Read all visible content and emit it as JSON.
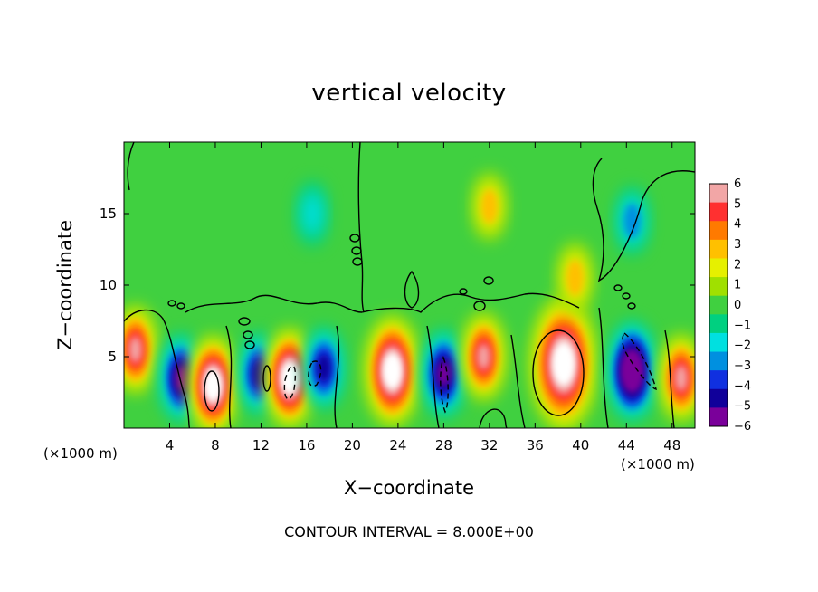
{
  "chart_data": {
    "type": "heatmap",
    "title": "vertical velocity",
    "xlabel": "X−coordinate",
    "ylabel": "Z−coordinate",
    "x_unit_left": "(×1000 m)",
    "x_unit_right": "(×1000 m)",
    "footer": "CONTOUR INTERVAL = 8.000E+00",
    "xlim": [
      0,
      50
    ],
    "ylim": [
      0,
      20
    ],
    "x_ticks": [
      "4",
      "8",
      "12",
      "16",
      "20",
      "24",
      "28",
      "32",
      "36",
      "40",
      "44",
      "48"
    ],
    "x_tick_values": [
      4,
      8,
      12,
      16,
      20,
      24,
      28,
      32,
      36,
      40,
      44,
      48
    ],
    "y_ticks": [
      "5",
      "10",
      "15"
    ],
    "y_tick_values": [
      5,
      10,
      15
    ],
    "colorbar": {
      "labels": [
        "6",
        "5",
        "4",
        "3",
        "2",
        "1",
        "0",
        "−1",
        "−2",
        "−3",
        "−4",
        "−5",
        "−6"
      ],
      "levels": [
        6,
        5,
        4,
        3,
        2,
        1,
        0,
        -1,
        -2,
        -3,
        -4,
        -5,
        -6
      ],
      "colors": [
        "#f2a6a6",
        "#ff3030",
        "#ff7a00",
        "#ffc000",
        "#e6f000",
        "#a0e000",
        "#40d040",
        "#00d080",
        "#00e0e0",
        "#0090e0",
        "#1030e0",
        "#10009a",
        "#7a009a"
      ]
    },
    "cells": [
      {
        "x": 1.0,
        "z": 5.5,
        "w": 6
      },
      {
        "x": 5.0,
        "z": 3.5,
        "w": -6
      },
      {
        "x": 7.8,
        "z": 3.0,
        "w": 8
      },
      {
        "x": 11.8,
        "z": 3.8,
        "w": -5
      },
      {
        "x": 14.5,
        "z": 3.5,
        "w": 8
      },
      {
        "x": 17.5,
        "z": 4.2,
        "w": -5
      },
      {
        "x": 23.5,
        "z": 4.0,
        "w": 10
      },
      {
        "x": 28.0,
        "z": 3.8,
        "w": -6
      },
      {
        "x": 31.5,
        "z": 5.0,
        "w": 6
      },
      {
        "x": 38.5,
        "z": 4.5,
        "w": 14
      },
      {
        "x": 44.5,
        "z": 4.0,
        "w": -8
      },
      {
        "x": 48.8,
        "z": 3.5,
        "w": 6
      },
      {
        "x": 16.5,
        "z": 15.0,
        "w": -2
      },
      {
        "x": 44.5,
        "z": 14.5,
        "w": -2.5
      },
      {
        "x": 32.0,
        "z": 15.5,
        "w": 2.5
      },
      {
        "x": 39.5,
        "z": 10.5,
        "w": 3
      }
    ]
  }
}
